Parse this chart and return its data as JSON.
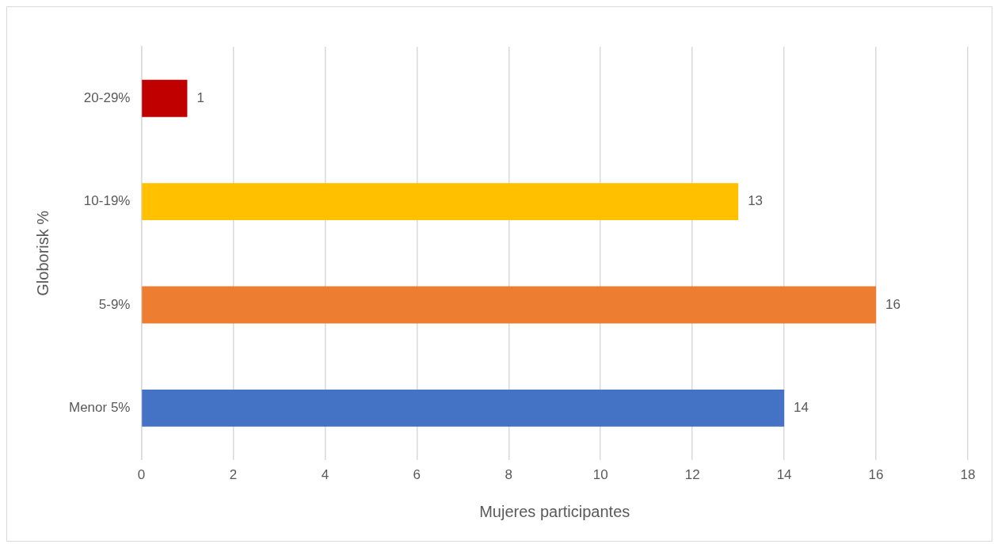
{
  "chart_data": {
    "type": "bar",
    "orientation": "horizontal",
    "xlabel": "Mujeres participantes",
    "ylabel": "Globorisk %",
    "categories": [
      "20-29%",
      "10-19%",
      "5-9%",
      "Menor 5%"
    ],
    "values": [
      1,
      13,
      16,
      14
    ],
    "colors": [
      "#c00000",
      "#ffc000",
      "#ed7d31",
      "#4472c4"
    ],
    "xlim": [
      0,
      18
    ],
    "xticks": [
      0,
      2,
      4,
      6,
      8,
      10,
      12,
      14,
      16,
      18
    ],
    "grid": "x",
    "legend": false,
    "data_labels": true
  }
}
